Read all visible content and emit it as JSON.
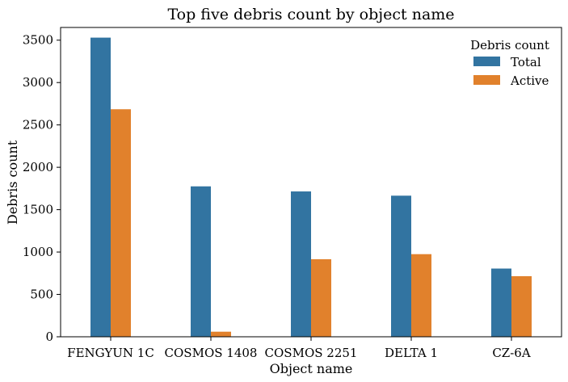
{
  "chart_data": {
    "type": "bar",
    "title": "Top five debris count by object name",
    "xlabel": "Object name",
    "ylabel": "Debris count",
    "categories": [
      "FENGYUN 1C",
      "COSMOS 1408",
      "COSMOS 2251",
      "DELTA 1",
      "CZ-6A"
    ],
    "series": [
      {
        "name": "Total",
        "color": "#3274a1",
        "values": [
          3530,
          1775,
          1715,
          1665,
          805
        ]
      },
      {
        "name": "Active",
        "color": "#e1812c",
        "values": [
          2685,
          60,
          915,
          975,
          715
        ]
      }
    ],
    "ylim": [
      0,
      3650
    ],
    "yticks": [
      0,
      500,
      1000,
      1500,
      2000,
      2500,
      3000,
      3500
    ],
    "legend": {
      "title": "Debris count",
      "position": "top-right"
    },
    "grid": false
  }
}
